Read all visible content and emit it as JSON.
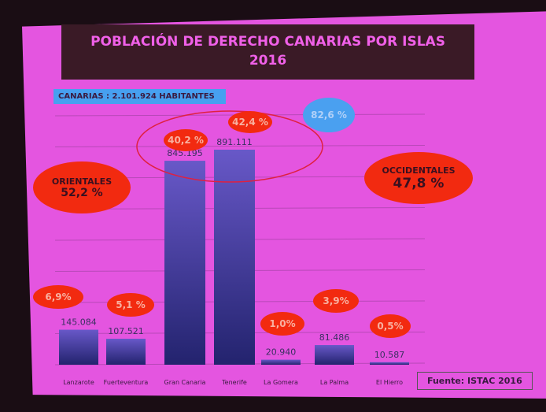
{
  "chart_data": {
    "type": "bar",
    "title": "POBLACIÓN DE DERECHO CANARIAS POR ISLAS",
    "subtitle": "2016",
    "categories": [
      "Lanzarote",
      "Fuerteventura",
      "Gran Canaria",
      "Tenerife",
      "La Gomera",
      "La Palma",
      "El Hierro"
    ],
    "values": [
      145084,
      107521,
      845195,
      891111,
      20940,
      81486,
      10587
    ],
    "value_labels": [
      "145.084",
      "107.521",
      "845.195",
      "891.111",
      "20.940",
      "81.486",
      "10.587"
    ],
    "percent_labels": [
      "6,9%",
      "5,1 %",
      "40,2 %",
      "42,4 %",
      "1,0%",
      "3,9%",
      "0,5%"
    ],
    "ylim": [
      0,
      1000000
    ],
    "grid": true,
    "xlabel": "",
    "ylabel": ""
  },
  "total_label": "CANARIAS : 2.101.924 HABITANTES",
  "combined_label": "82,6 %",
  "orientales": {
    "label": "ORIENTALES",
    "value": "52,2 %"
  },
  "occidentales": {
    "label": "OCCIDENTALES",
    "value": "47,8 %"
  },
  "source": "Fuente: ISTAC 2016",
  "colors": {
    "slide": "#e455e0",
    "bar": "#2c2c80",
    "callout": "#f22a10",
    "total": "#47a0f0"
  }
}
